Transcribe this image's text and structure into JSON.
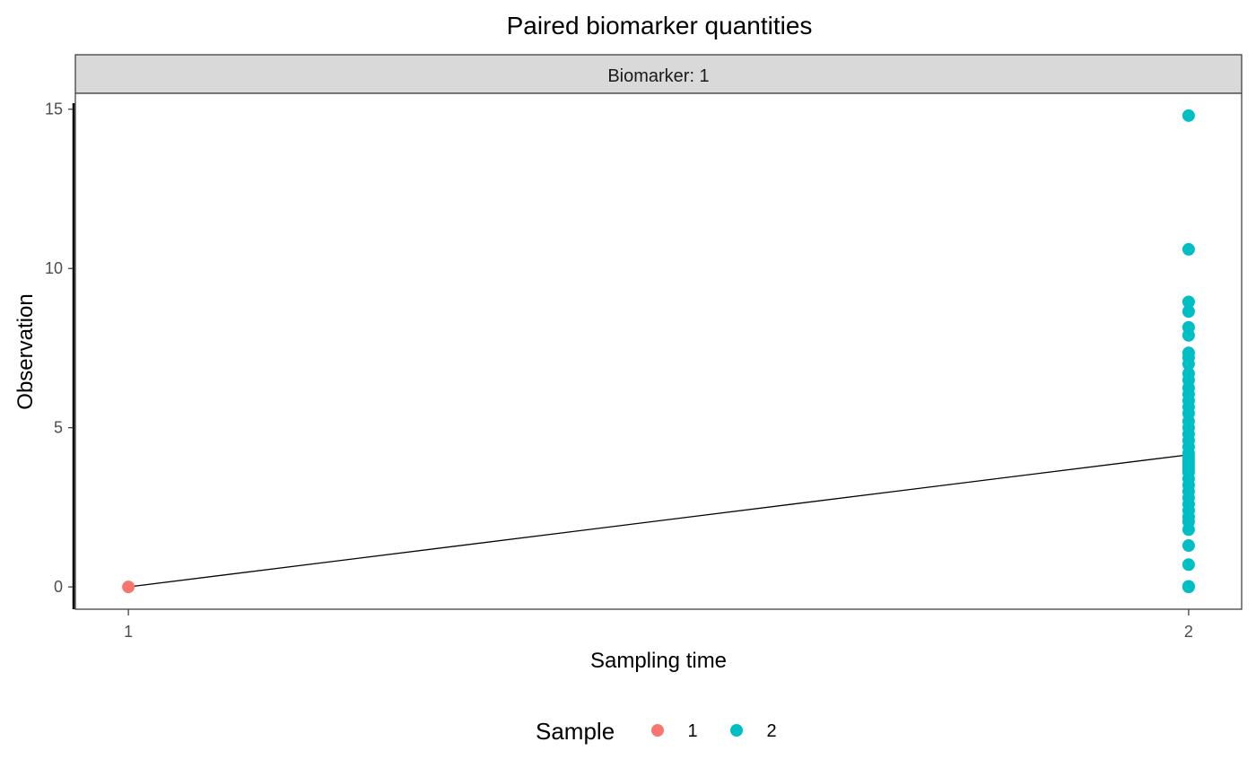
{
  "chart_data": {
    "type": "scatter",
    "title": "Paired biomarker quantities",
    "facet_label": "Biomarker: 1",
    "xlabel": "Sampling time",
    "ylabel": "Observation",
    "x_ticks": [
      1,
      2
    ],
    "y_ticks": [
      0,
      5,
      10,
      15
    ],
    "xlim": [
      0.95,
      2.05
    ],
    "ylim": [
      -0.7,
      15.5
    ],
    "grid": false,
    "legend": {
      "title": "Sample",
      "position": "bottom",
      "entries": [
        {
          "label": "1",
          "color": "#F8766D"
        },
        {
          "label": "2",
          "color": "#00BFC4"
        }
      ]
    },
    "series": [
      {
        "name": "1",
        "color": "#F8766D",
        "x": [
          1
        ],
        "y": [
          0
        ]
      },
      {
        "name": "2",
        "color": "#00BFC4",
        "x": [
          2,
          2,
          2,
          2,
          2,
          2,
          2,
          2,
          2,
          2,
          2,
          2,
          2,
          2,
          2,
          2,
          2,
          2,
          2,
          2,
          2,
          2,
          2,
          2,
          2,
          2,
          2,
          2,
          2,
          2,
          2,
          2,
          2,
          2,
          2,
          2,
          2,
          2,
          2,
          2,
          2
        ],
        "y": [
          14.8,
          10.6,
          8.95,
          8.65,
          8.15,
          7.9,
          7.35,
          7.2,
          7.0,
          6.7,
          6.5,
          6.25,
          6.05,
          5.85,
          5.65,
          5.45,
          5.2,
          5.0,
          4.8,
          4.6,
          4.4,
          4.2,
          4.0,
          3.8,
          3.6,
          3.4,
          3.2,
          3.0,
          2.8,
          2.6,
          2.4,
          2.2,
          2.05,
          1.8,
          1.3,
          0.7,
          0.02,
          0.0,
          3.9,
          4.1,
          3.7
        ]
      }
    ],
    "trend_line": {
      "x": [
        1,
        2
      ],
      "y": [
        0,
        4.15
      ],
      "color": "#000000"
    }
  }
}
